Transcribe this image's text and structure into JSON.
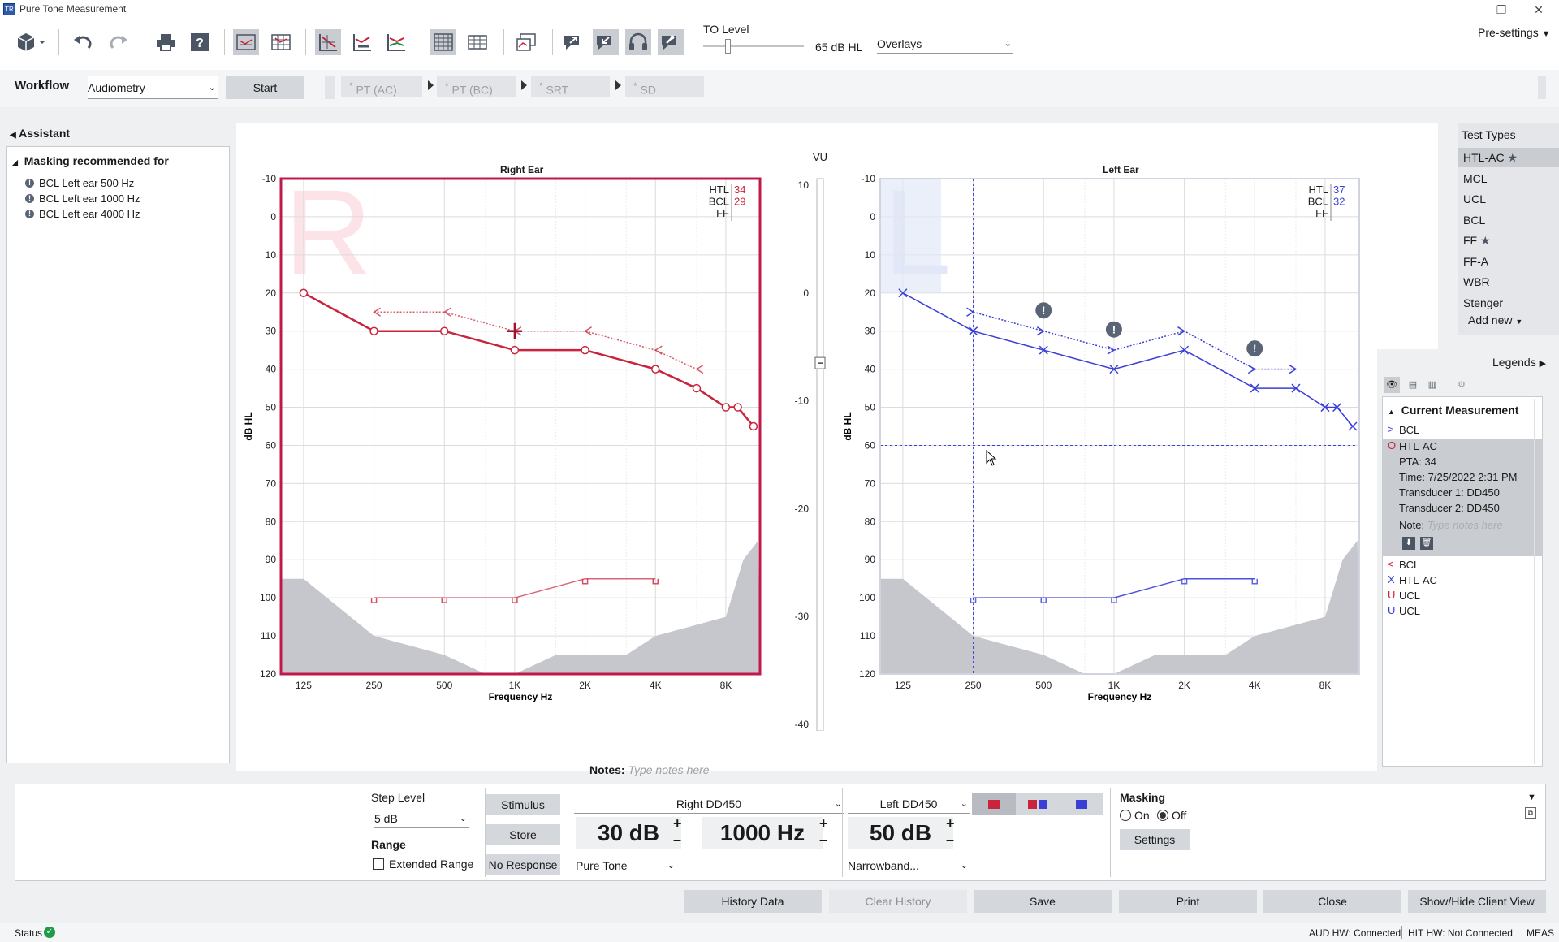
{
  "window": {
    "title": "Pure Tone Measurement",
    "app_icon_text": "TR"
  },
  "toolbar": {
    "to_level_label": "TO Level",
    "to_level_value": "65 dB HL",
    "to_level_fraction": 0.22,
    "overlays_label": "Overlays",
    "presettings_label": "Pre-settings"
  },
  "workflow": {
    "label": "Workflow",
    "selected": "Audiometry",
    "start_label": "Start",
    "steps": [
      "PT (AC)",
      "PT (BC)",
      "SRT",
      "SD"
    ],
    "step_marker": "*"
  },
  "assistant": {
    "title": "Assistant",
    "group_title": "Masking recommended for",
    "items": [
      "BCL Left ear 500 Hz",
      "BCL Left ear 1000 Hz",
      "BCL Left ear 4000 Hz"
    ]
  },
  "charts": {
    "y_ticks": [
      "-10",
      "0",
      "10",
      "20",
      "30",
      "40",
      "50",
      "60",
      "70",
      "80",
      "90",
      "100",
      "110",
      "120"
    ],
    "x_ticks": [
      "125",
      "250",
      "500",
      "1K",
      "2K",
      "4K",
      "8K"
    ],
    "ylabel": "dB HL",
    "xlabel": "Frequency Hz",
    "right": {
      "title": "Right Ear",
      "letter": "R",
      "htl_label": "HTL",
      "htl_value": "34",
      "bcl_label": "BCL",
      "bcl_value": "29",
      "ff_label": "FF",
      "color": "#c8243c"
    },
    "left": {
      "title": "Left Ear",
      "letter": "L",
      "htl_label": "HTL",
      "htl_value": "37",
      "bcl_label": "BCL",
      "bcl_value": "32",
      "ff_label": "FF",
      "color": "#3a3fd8"
    }
  },
  "chart_data": [
    {
      "type": "line",
      "title": "Right Ear",
      "xlabel": "Frequency Hz",
      "ylabel": "dB HL",
      "x_scale": "log",
      "ylim": [
        -10,
        120
      ],
      "y_inverted": true,
      "series": [
        {
          "name": "HTL-AC",
          "marker": "circle",
          "x": [
            125,
            250,
            500,
            1000,
            2000,
            4000,
            6000,
            8000,
            9000,
            10500
          ],
          "y": [
            20,
            30,
            30,
            35,
            35,
            40,
            45,
            50,
            50,
            55
          ]
        },
        {
          "name": "BCL",
          "marker": "left-arrow",
          "x": [
            250,
            500,
            1000,
            2000,
            4000,
            6000
          ],
          "y": [
            25,
            25,
            30,
            30,
            35,
            40
          ]
        },
        {
          "name": "UCL",
          "marker": "U",
          "x": [
            250,
            500,
            1000,
            2000,
            4000
          ],
          "y": [
            100,
            100,
            100,
            95,
            95
          ]
        },
        {
          "name": "Current cursor",
          "marker": "cross",
          "x": [
            1000
          ],
          "y": [
            30
          ]
        }
      ],
      "shaded_region": {
        "name": "speech banana / noise floor",
        "x": [
          100,
          125,
          250,
          500,
          750,
          1000,
          1500,
          3000,
          4000,
          8000,
          9500,
          11000
        ],
        "y": [
          95,
          95,
          110,
          115,
          120,
          120,
          115,
          115,
          110,
          105,
          90,
          85
        ]
      }
    },
    {
      "type": "line",
      "title": "Left Ear",
      "xlabel": "Frequency Hz",
      "ylabel": "dB HL",
      "x_scale": "log",
      "ylim": [
        -10,
        120
      ],
      "y_inverted": true,
      "series": [
        {
          "name": "HTL-AC",
          "marker": "x",
          "x": [
            125,
            250,
            500,
            1000,
            2000,
            4000,
            6000,
            8000,
            9000,
            10500
          ],
          "y": [
            20,
            30,
            35,
            40,
            35,
            45,
            45,
            50,
            50,
            55
          ]
        },
        {
          "name": "BCL",
          "marker": "right-arrow",
          "x": [
            250,
            500,
            1000,
            2000,
            4000,
            6000
          ],
          "y": [
            25,
            30,
            35,
            30,
            40,
            40
          ]
        },
        {
          "name": "UCL",
          "marker": "U",
          "x": [
            250,
            500,
            1000,
            2000,
            4000
          ],
          "y": [
            100,
            100,
            100,
            95,
            95
          ]
        },
        {
          "name": "Masking warnings",
          "marker": "exclamation",
          "x": [
            500,
            1000,
            4000
          ],
          "y": [
            25,
            30,
            35
          ]
        }
      ],
      "crosshair": {
        "x": 250,
        "y": 60
      },
      "shaded_region": {
        "name": "speech banana / noise floor",
        "x": [
          100,
          125,
          250,
          500,
          750,
          1000,
          1500,
          3000,
          4000,
          8000,
          9500,
          11000
        ],
        "y": [
          95,
          95,
          110,
          115,
          120,
          120,
          115,
          115,
          110,
          105,
          90,
          85
        ]
      }
    }
  ],
  "vu": {
    "label": "VU",
    "ticks": [
      "10",
      "0",
      "-10",
      "-20",
      "-30",
      "-40"
    ],
    "value": -6.5
  },
  "notes": {
    "label": "Notes:",
    "placeholder": "Type notes here"
  },
  "test_types": {
    "title": "Test Types",
    "items": [
      "HTL-AC",
      "MCL",
      "UCL",
      "BCL",
      "FF",
      "FF-A",
      "WBR",
      "Stenger"
    ],
    "starred": [
      "HTL-AC",
      "FF"
    ],
    "selected": "HTL-AC",
    "add_new": "Add new"
  },
  "legends": {
    "title": "Legends",
    "current_title": "Current Measurement",
    "items_top": [
      {
        "sym": ">",
        "label": "BCL",
        "color": "#3a3fd8"
      },
      {
        "sym": "O",
        "label": "HTL-AC",
        "color": "#c8243c"
      }
    ],
    "details": {
      "pta": "PTA: 34",
      "time": "Time: 7/25/2022 2:31 PM",
      "t1": "Transducer 1: DD450",
      "t2": "Transducer 2: DD450",
      "note_label": "Note:",
      "note_placeholder": "Type notes here"
    },
    "items_bottom": [
      {
        "sym": "<",
        "label": "BCL",
        "color": "#c8243c"
      },
      {
        "sym": "X",
        "label": "HTL-AC",
        "color": "#3a3fd8"
      },
      {
        "sym": "U",
        "label": "UCL",
        "color": "#c8243c"
      },
      {
        "sym": "U",
        "label": "UCL",
        "color": "#3a3fd8"
      }
    ]
  },
  "controls": {
    "step_level_label": "Step Level",
    "step_level_value": "5 dB",
    "range_label": "Range",
    "extended_range": "Extended Range",
    "stimulus": "Stimulus",
    "store": "Store",
    "no_response": "No Response",
    "right_transducer": "Right DD450",
    "left_transducer": "Left DD450",
    "level": "30 dB",
    "frequency": "1000 Hz",
    "mask_level": "50 dB",
    "plus": "+",
    "minus": "–",
    "signal_type": "Pure Tone",
    "mask_type": "Narrowband...",
    "masking_label": "Masking",
    "masking_on": "On",
    "masking_off": "Off",
    "settings": "Settings"
  },
  "actions": [
    "History Data",
    "Clear History",
    "Save",
    "Print",
    "Close",
    "Show/Hide Client View"
  ],
  "status": {
    "label": "Status",
    "aud_hw": "AUD HW: Connected",
    "hit_hw": "HIT HW: Not Connected",
    "mode": "MEAS"
  }
}
